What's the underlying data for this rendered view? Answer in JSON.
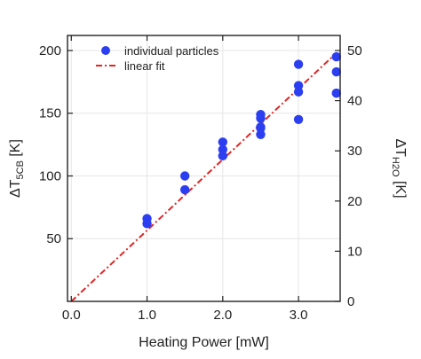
{
  "chart_data": {
    "type": "scatter",
    "title": "",
    "xlabel": "Heating Power [mW]",
    "ylabel": {
      "prefix": "ΔT",
      "subscript": "5CB",
      "suffix": " [K]"
    },
    "y2label": {
      "prefix": "ΔT",
      "subscript": "H2O",
      "suffix": " [K]"
    },
    "xlim": [
      -0.05,
      3.55
    ],
    "ylim": [
      0,
      212
    ],
    "y2lim": [
      0,
      53
    ],
    "xticks": [
      0.0,
      1.0,
      2.0,
      3.0
    ],
    "xtick_labels": [
      "0.0",
      "1.0",
      "2.0",
      "3.0"
    ],
    "yticks": [
      50,
      100,
      150,
      200
    ],
    "ytick_labels": [
      "50",
      "100",
      "150",
      "200"
    ],
    "y2ticks": [
      0,
      10,
      20,
      30,
      40,
      50
    ],
    "y2tick_labels": [
      "0",
      "10",
      "20",
      "30",
      "40",
      "50"
    ],
    "grid": true,
    "legend_position": "top-left",
    "series": [
      {
        "name": "individual particles",
        "kind": "scatter",
        "color": "#2b3ff0",
        "x": [
          1.0,
          1.0,
          1.5,
          1.5,
          2.0,
          2.0,
          2.0,
          2.5,
          2.5,
          2.5,
          2.5,
          2.5,
          3.0,
          3.0,
          3.0,
          3.0,
          3.5,
          3.5,
          3.5
        ],
        "y": [
          66,
          62,
          100,
          89,
          127,
          121,
          116,
          149,
          146,
          139,
          133,
          138,
          189,
          172,
          167,
          145,
          195,
          183,
          166
        ]
      },
      {
        "name": "linear fit",
        "kind": "line",
        "color": "#e32424",
        "style": "dash-dot",
        "x": [
          0.0,
          3.5
        ],
        "y": [
          0,
          198
        ]
      }
    ]
  }
}
